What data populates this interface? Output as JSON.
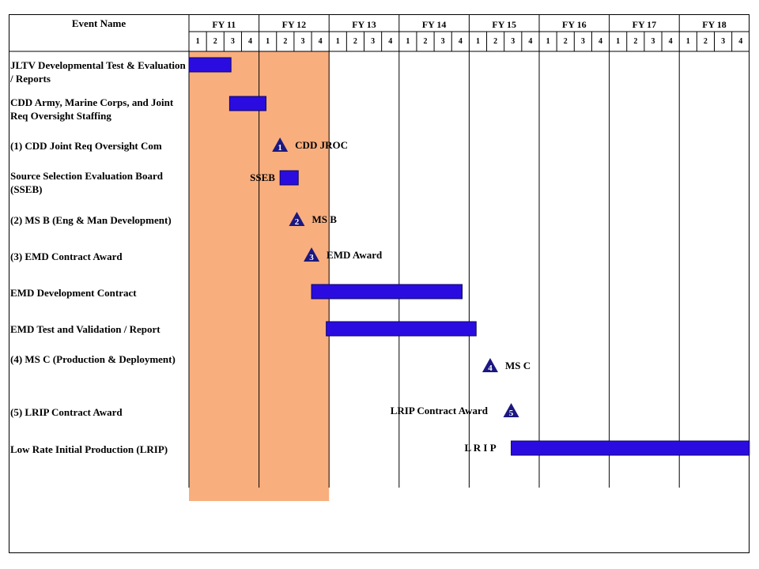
{
  "chart_data": {
    "type": "gantt",
    "column_header": "Event Name",
    "fiscal_years": [
      "FY 11",
      "FY 12",
      "FY 13",
      "FY 14",
      "FY 15",
      "FY 16",
      "FY 17",
      "FY 18"
    ],
    "quarters": [
      "1",
      "2",
      "3",
      "4"
    ],
    "shaded_period": {
      "start": "FY 11 Q1",
      "end": "FY 12 Q4",
      "color": "#F9AE7E"
    },
    "bar_color": "#2B0CE0",
    "milestone_color": "#1B1880",
    "events": [
      {
        "label": "JLTV Developmental Test & Evaluation / Reports",
        "kind": "bar",
        "start": 0.0,
        "end": 0.6,
        "mark_label": ""
      },
      {
        "label": "CDD Army, Marine Corps, and Joint Req Oversight Staffing",
        "kind": "bar",
        "start": 0.58,
        "end": 1.1,
        "mark_label": ""
      },
      {
        "label": "(1) CDD Joint Req Oversight Com",
        "kind": "milestone",
        "number": "1",
        "at": 1.3,
        "mark_label": "CDD JROC"
      },
      {
        "label": "Source Selection Evaluation Board (SSEB)",
        "kind": "bar",
        "start": 1.3,
        "end": 1.56,
        "mark_label": "SSEB"
      },
      {
        "label": "(2) MS B (Eng & Man Development)",
        "kind": "milestone",
        "number": "2",
        "at": 1.54,
        "mark_label": "MS B"
      },
      {
        "label": "(3) EMD Contract Award",
        "kind": "milestone",
        "number": "3",
        "at": 1.75,
        "mark_label": "EMD Award"
      },
      {
        "label": "EMD Development Contract",
        "kind": "bar",
        "start": 1.75,
        "end": 3.9,
        "mark_label": ""
      },
      {
        "label": "EMD Test and Validation / Report",
        "kind": "bar",
        "start": 1.96,
        "end": 4.1,
        "mark_label": ""
      },
      {
        "label": "(4) MS C (Production & Deployment)",
        "kind": "milestone",
        "number": "4",
        "at": 4.3,
        "mark_label": "MS C"
      },
      {
        "label": "(5) LRIP Contract Award",
        "kind": "milestone",
        "number": "5",
        "at": 4.6,
        "mark_label": "LRIP Contract Award"
      },
      {
        "label": "Low Rate Initial Production (LRIP)",
        "kind": "bar",
        "start": 4.6,
        "end": 8.0,
        "mark_label": "L R I P"
      }
    ]
  }
}
